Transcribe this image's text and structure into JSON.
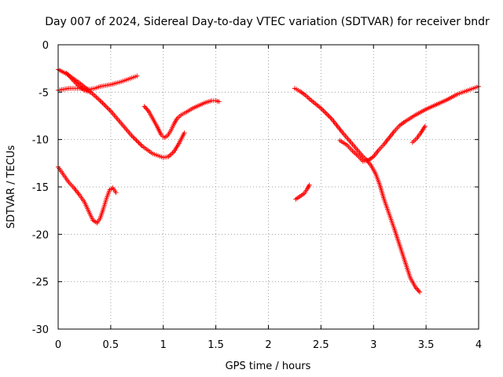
{
  "chart_data": {
    "type": "scatter",
    "title": "Day 007 of 2024, Sidereal Day-to-day VTEC variation (SDTVAR) for receiver bndr",
    "xlabel": "GPS time / hours",
    "ylabel": "SDTVAR / TECUs",
    "xlim": [
      0,
      4
    ],
    "ylim": [
      -30,
      0
    ],
    "xticks": [
      {
        "value": 0,
        "label": "0"
      },
      {
        "value": 0.5,
        "label": "0.5"
      },
      {
        "value": 1,
        "label": "1"
      },
      {
        "value": 1.5,
        "label": "1.5"
      },
      {
        "value": 2,
        "label": "2"
      },
      {
        "value": 2.5,
        "label": "2.5"
      },
      {
        "value": 3,
        "label": "3"
      },
      {
        "value": 3.5,
        "label": "3.5"
      },
      {
        "value": 4,
        "label": "4"
      }
    ],
    "yticks": [
      {
        "value": 0,
        "label": "0"
      },
      {
        "value": -5,
        "label": "-5"
      },
      {
        "value": -10,
        "label": "-10"
      },
      {
        "value": -15,
        "label": "-15"
      },
      {
        "value": -20,
        "label": "-20"
      },
      {
        "value": -25,
        "label": "-25"
      },
      {
        "value": -30,
        "label": "-30"
      }
    ],
    "grid": true,
    "marker_color": "#ff0000",
    "marker": "plus",
    "series": [
      {
        "x": [
          0,
          0.1,
          0.2,
          0.3,
          0.4,
          0.5,
          0.6,
          0.7,
          0.8,
          0.9,
          1.0,
          1.05
        ],
        "y": [
          -2.6,
          -3.2,
          -4.0,
          -4.9,
          -5.9,
          -7.0,
          -8.3,
          -9.6,
          -10.7,
          -11.5,
          -11.9,
          -11.8
        ]
      },
      {
        "x": [
          1.05,
          1.1,
          1.15,
          1.2
        ],
        "y": [
          -11.8,
          -11.3,
          -10.4,
          -9.3
        ]
      },
      {
        "x": [
          0,
          0.1,
          0.2,
          0.3,
          0.35,
          0.4,
          0.5,
          0.6,
          0.7,
          0.75
        ],
        "y": [
          -4.8,
          -4.6,
          -4.6,
          -4.7,
          -4.6,
          -4.4,
          -4.2,
          -3.9,
          -3.5,
          -3.3
        ]
      },
      {
        "x": [
          0,
          0.05,
          0.1,
          0.15,
          0.2,
          0.25,
          0.3,
          0.33,
          0.37,
          0.4,
          0.43,
          0.46,
          0.49,
          0.52,
          0.55
        ],
        "y": [
          -12.9,
          -13.7,
          -14.5,
          -15.1,
          -15.8,
          -16.6,
          -17.8,
          -18.5,
          -18.8,
          -18.3,
          -17.3,
          -16.2,
          -15.3,
          -15.1,
          -15.6
        ]
      },
      {
        "x": [
          0.08,
          0.13,
          0.2,
          0.25,
          0.3
        ],
        "y": [
          -3.0,
          -3.6,
          -4.4,
          -4.8,
          -5.0
        ]
      },
      {
        "x": [
          0.82,
          0.86,
          0.9,
          0.94,
          0.98,
          1.01,
          1.04,
          1.07,
          1.1,
          1.13,
          1.17,
          1.22,
          1.28,
          1.34,
          1.4,
          1.46,
          1.5,
          1.53
        ],
        "y": [
          -6.5,
          -7.0,
          -7.8,
          -8.6,
          -9.5,
          -9.8,
          -9.6,
          -9.1,
          -8.4,
          -7.8,
          -7.4,
          -7.1,
          -6.7,
          -6.4,
          -6.1,
          -5.9,
          -5.9,
          -6.0
        ]
      },
      {
        "x": [
          2.25,
          2.3,
          2.35,
          2.4,
          2.5,
          2.6,
          2.7,
          2.8,
          2.9,
          2.94
        ],
        "y": [
          -4.6,
          -4.9,
          -5.3,
          -5.8,
          -6.7,
          -7.8,
          -9.2,
          -10.5,
          -11.8,
          -12.2
        ]
      },
      {
        "x": [
          2.94,
          2.98,
          3.02,
          3.06,
          3.1,
          3.15,
          3.2,
          3.25,
          3.3,
          3.35,
          3.4,
          3.44
        ],
        "y": [
          -12.2,
          -12.8,
          -13.6,
          -14.8,
          -16.3,
          -17.9,
          -19.5,
          -21.2,
          -22.9,
          -24.6,
          -25.6,
          -26.1
        ]
      },
      {
        "x": [
          2.68,
          2.75,
          2.8,
          2.85,
          2.9,
          2.95,
          3.0,
          3.05,
          3.1,
          3.15,
          3.2,
          3.25,
          3.3,
          3.4,
          3.5,
          3.6,
          3.7,
          3.8,
          3.9,
          4.0
        ],
        "y": [
          -10.1,
          -10.6,
          -11.2,
          -11.7,
          -12.3,
          -12.2,
          -11.8,
          -11.1,
          -10.5,
          -9.8,
          -9.1,
          -8.5,
          -8.1,
          -7.4,
          -6.8,
          -6.3,
          -5.8,
          -5.2,
          -4.8,
          -4.4
        ]
      },
      {
        "x": [
          3.37,
          3.41,
          3.45,
          3.49
        ],
        "y": [
          -10.3,
          -9.9,
          -9.3,
          -8.6
        ]
      },
      {
        "x": [
          2.26,
          2.3,
          2.34,
          2.37,
          2.39
        ],
        "y": [
          -16.3,
          -16.0,
          -15.7,
          -15.2,
          -14.8
        ]
      }
    ]
  }
}
